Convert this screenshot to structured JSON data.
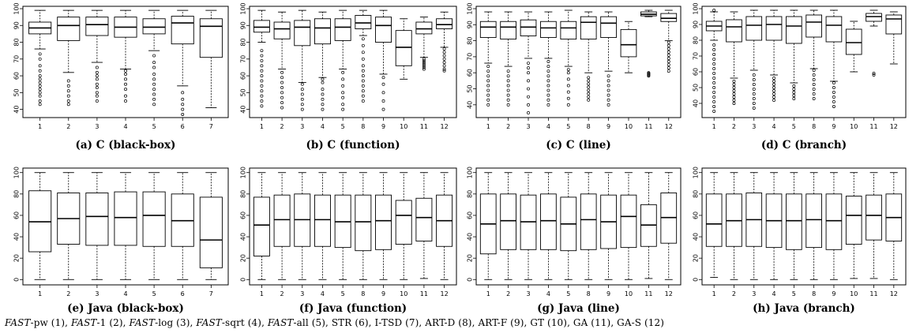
{
  "legend": [
    {
      "italic": "FAST",
      "rest": "-pw (1)"
    },
    {
      "italic": "FAST",
      "rest": "-1 (2)"
    },
    {
      "italic": "FAST",
      "rest": "-log (3)"
    },
    {
      "italic": "FAST",
      "rest": "-sqrt (4)"
    },
    {
      "italic": "FAST",
      "rest": "-all (5)"
    },
    {
      "italic": "",
      "rest": "STR (6)"
    },
    {
      "italic": "",
      "rest": "I-TSD (7)"
    },
    {
      "italic": "",
      "rest": "ART-D (8)"
    },
    {
      "italic": "",
      "rest": "ART-F (9)"
    },
    {
      "italic": "",
      "rest": "GT (10)"
    },
    {
      "italic": "",
      "rest": "GA (11)"
    },
    {
      "italic": "",
      "rest": "GA-S (12)"
    }
  ],
  "chart_data": [
    {
      "type": "boxplot",
      "title": "(a) C (black-box)",
      "yticks": [
        40,
        50,
        60,
        70,
        80,
        90,
        100
      ],
      "ylim": [
        37,
        100
      ],
      "categories": [
        "1",
        "2",
        "3",
        "4",
        "5",
        "6",
        "7"
      ],
      "boxes": [
        {
          "min": 76,
          "q1": 85,
          "median": 88.5,
          "q3": 92,
          "max": 99,
          "outliers": [
            43,
            45,
            48,
            50,
            52,
            54,
            56,
            58,
            60,
            63,
            66,
            70,
            73
          ]
        },
        {
          "min": 62,
          "q1": 81,
          "median": 90,
          "q3": 95,
          "max": 99,
          "outliers": [
            43,
            45,
            48,
            51,
            54,
            57
          ]
        },
        {
          "min": 68,
          "q1": 84,
          "median": 90.5,
          "q3": 95,
          "max": 99,
          "outliers": [
            45,
            48,
            50,
            53,
            55,
            58,
            60,
            62,
            65
          ]
        },
        {
          "min": 64,
          "q1": 83,
          "median": 89,
          "q3": 95,
          "max": 99,
          "outliers": [
            45,
            48,
            52,
            55,
            58,
            61,
            63
          ]
        },
        {
          "min": 75,
          "q1": 85,
          "median": 89,
          "q3": 94,
          "max": 99,
          "outliers": [
            43,
            46,
            49,
            52,
            55,
            58,
            61,
            65,
            68,
            72
          ]
        },
        {
          "min": 54,
          "q1": 79,
          "median": 91.5,
          "q3": 95.5,
          "max": 99,
          "outliers": [
            37,
            40,
            43,
            46,
            50
          ]
        },
        {
          "min": 41,
          "q1": 71,
          "median": 89.5,
          "q3": 94,
          "max": 99,
          "outliers": []
        }
      ]
    },
    {
      "type": "boxplot",
      "title": "(b) C (function)",
      "yticks": [
        40,
        50,
        60,
        70,
        80,
        90,
        100
      ],
      "ylim": [
        37,
        100
      ],
      "categories": [
        "1",
        "2",
        "3",
        "4",
        "5",
        "8",
        "9",
        "10",
        "11",
        "12"
      ],
      "boxes": [
        {
          "min": 80,
          "q1": 86,
          "median": 89,
          "q3": 93,
          "max": 99,
          "outliers": [
            42,
            45,
            48,
            51,
            54,
            57,
            60,
            63,
            66,
            69,
            72,
            75
          ]
        },
        {
          "min": 64,
          "q1": 82,
          "median": 88,
          "q3": 92,
          "max": 98,
          "outliers": [
            41,
            44,
            47,
            50,
            53,
            56,
            59,
            62
          ]
        },
        {
          "min": 56,
          "q1": 78,
          "median": 89,
          "q3": 93,
          "max": 99,
          "outliers": [
            40,
            43,
            46,
            49,
            52,
            55
          ]
        },
        {
          "min": 59,
          "q1": 79,
          "median": 88.5,
          "q3": 94,
          "max": 98,
          "outliers": [
            40,
            43,
            46,
            49,
            52,
            56,
            58
          ]
        },
        {
          "min": 64,
          "q1": 81,
          "median": 89,
          "q3": 94,
          "max": 99,
          "outliers": [
            40,
            43,
            47,
            50,
            54,
            58,
            62
          ]
        },
        {
          "min": 84,
          "q1": 88,
          "median": 91.5,
          "q3": 96,
          "max": 99,
          "outliers": [
            45,
            48,
            51,
            54,
            57,
            60,
            63,
            66,
            70,
            74,
            78,
            82
          ]
        },
        {
          "min": 61,
          "q1": 80,
          "median": 90,
          "q3": 95,
          "max": 99,
          "outliers": [
            40,
            45,
            50,
            55,
            59
          ]
        },
        {
          "min": 58,
          "q1": 66,
          "median": 77,
          "q3": 87,
          "max": 94,
          "outliers": []
        },
        {
          "min": 71,
          "q1": 85,
          "median": 88,
          "q3": 92,
          "max": 95,
          "outliers": [
            64,
            65,
            66,
            67,
            68,
            69,
            70
          ]
        },
        {
          "min": 77,
          "q1": 88,
          "median": 90.5,
          "q3": 94,
          "max": 98,
          "outliers": [
            63,
            64,
            66,
            68,
            70,
            72,
            74,
            76
          ]
        }
      ]
    },
    {
      "type": "boxplot",
      "title": "(c) C (line)",
      "yticks": [
        40,
        50,
        60,
        70,
        80,
        90,
        100
      ],
      "ylim": [
        34,
        100
      ],
      "categories": [
        "1",
        "2",
        "3",
        "4",
        "5",
        "8",
        "9",
        "10",
        "11",
        "12"
      ],
      "boxes": [
        {
          "min": 66,
          "q1": 82,
          "median": 88.5,
          "q3": 92,
          "max": 98,
          "outliers": [
            40,
            43,
            46,
            49,
            52,
            55,
            58,
            61,
            64
          ]
        },
        {
          "min": 64,
          "q1": 81,
          "median": 88.5,
          "q3": 92,
          "max": 98,
          "outliers": [
            40,
            43,
            46,
            49,
            52,
            55,
            58,
            61
          ]
        },
        {
          "min": 69,
          "q1": 83,
          "median": 88.5,
          "q3": 93,
          "max": 98,
          "outliers": [
            35,
            40,
            45,
            50,
            55,
            60,
            63,
            66
          ]
        },
        {
          "min": 69,
          "q1": 82,
          "median": 88,
          "q3": 92,
          "max": 98,
          "outliers": [
            40,
            43,
            46,
            49,
            52,
            55,
            58,
            61,
            64,
            67
          ]
        },
        {
          "min": 64,
          "q1": 81,
          "median": 88,
          "q3": 92,
          "max": 99,
          "outliers": [
            40,
            44,
            48,
            52,
            56,
            60,
            62
          ]
        },
        {
          "min": 60,
          "q1": 81,
          "median": 91.5,
          "q3": 95,
          "max": 98,
          "outliers": [
            43,
            45,
            47,
            49,
            51,
            53,
            55,
            57
          ]
        },
        {
          "min": 61,
          "q1": 82,
          "median": 91,
          "q3": 95,
          "max": 98,
          "outliers": [
            40,
            43,
            46,
            49,
            52,
            55,
            58
          ]
        },
        {
          "min": 60,
          "q1": 70,
          "median": 77.5,
          "q3": 87,
          "max": 92,
          "outliers": []
        },
        {
          "min": 95,
          "q1": 95.5,
          "median": 96.5,
          "q3": 98,
          "max": 99,
          "outliers": [
            58,
            58.5,
            59,
            59.5,
            60
          ]
        },
        {
          "min": 80,
          "q1": 92,
          "median": 94,
          "q3": 97,
          "max": 99,
          "outliers": [
            61,
            63,
            65,
            67,
            69,
            71,
            73,
            75,
            77,
            79
          ]
        }
      ]
    },
    {
      "type": "boxplot",
      "title": "(d) C (branch)",
      "yticks": [
        40,
        50,
        60,
        70,
        80,
        90,
        100
      ],
      "ylim": [
        33,
        100
      ],
      "categories": [
        "1",
        "2",
        "3",
        "4",
        "5",
        "8",
        "9",
        "10",
        "11",
        "12"
      ],
      "boxes": [
        {
          "min": 80,
          "q1": 86,
          "median": 89,
          "q3": 92,
          "max": 98,
          "outliers": [
            35,
            38,
            41,
            44,
            47,
            50,
            53,
            56,
            59,
            62,
            65,
            68,
            71,
            74,
            77,
            99
          ]
        },
        {
          "min": 56,
          "q1": 79,
          "median": 88.5,
          "q3": 93,
          "max": 98,
          "outliers": [
            40,
            42,
            44,
            46,
            48,
            50,
            52,
            54
          ]
        },
        {
          "min": 61,
          "q1": 80,
          "median": 89.5,
          "q3": 95,
          "max": 99,
          "outliers": [
            37,
            40,
            43,
            46,
            49,
            52,
            55,
            58
          ]
        },
        {
          "min": 58,
          "q1": 80,
          "median": 90,
          "q3": 95,
          "max": 99,
          "outliers": [
            42,
            44,
            46,
            48,
            50,
            52,
            54,
            56
          ]
        },
        {
          "min": 53,
          "q1": 78,
          "median": 89,
          "q3": 95,
          "max": 99,
          "outliers": [
            43,
            45,
            47,
            49,
            51
          ]
        },
        {
          "min": 62,
          "q1": 82,
          "median": 91.5,
          "q3": 96,
          "max": 99,
          "outliers": [
            43,
            46,
            49,
            52,
            55,
            58,
            61
          ]
        },
        {
          "min": 54,
          "q1": 79,
          "median": 89.5,
          "q3": 95,
          "max": 99,
          "outliers": [
            38,
            41,
            44,
            47,
            50,
            53
          ]
        },
        {
          "min": 60,
          "q1": 71,
          "median": 78.5,
          "q3": 87,
          "max": 92,
          "outliers": []
        },
        {
          "min": 89,
          "q1": 92,
          "median": 95,
          "q3": 97,
          "max": 99,
          "outliers": [
            58,
            59
          ]
        },
        {
          "min": 65,
          "q1": 84,
          "median": 93.5,
          "q3": 96,
          "max": 98,
          "outliers": []
        }
      ]
    },
    {
      "type": "boxplot",
      "title": "(e) Java (black-box)",
      "yticks": [
        0,
        20,
        40,
        60,
        80,
        100
      ],
      "ylim": [
        -2,
        102
      ],
      "categories": [
        "1",
        "2",
        "3",
        "4",
        "5",
        "6",
        "7"
      ],
      "boxes": [
        {
          "min": 0,
          "q1": 26,
          "median": 54,
          "q3": 83,
          "max": 100,
          "outliers": []
        },
        {
          "min": 0,
          "q1": 33,
          "median": 57,
          "q3": 81,
          "max": 100,
          "outliers": []
        },
        {
          "min": 0,
          "q1": 32,
          "median": 59,
          "q3": 81,
          "max": 100,
          "outliers": []
        },
        {
          "min": 0,
          "q1": 32,
          "median": 58,
          "q3": 82,
          "max": 100,
          "outliers": []
        },
        {
          "min": 0,
          "q1": 31,
          "median": 60,
          "q3": 82,
          "max": 100,
          "outliers": []
        },
        {
          "min": 0,
          "q1": 31,
          "median": 55,
          "q3": 80,
          "max": 100,
          "outliers": []
        },
        {
          "min": 0,
          "q1": 11,
          "median": 37,
          "q3": 77,
          "max": 100,
          "outliers": []
        }
      ]
    },
    {
      "type": "boxplot",
      "title": "(f) Java (function)",
      "yticks": [
        0,
        20,
        40,
        60,
        80,
        100
      ],
      "ylim": [
        -2,
        102
      ],
      "categories": [
        "1",
        "2",
        "3",
        "4",
        "5",
        "8",
        "9",
        "10",
        "11",
        "12"
      ],
      "boxes": [
        {
          "min": 0,
          "q1": 22,
          "median": 51,
          "q3": 77,
          "max": 100,
          "outliers": []
        },
        {
          "min": 0,
          "q1": 31,
          "median": 56,
          "q3": 79,
          "max": 100,
          "outliers": []
        },
        {
          "min": 0,
          "q1": 31,
          "median": 56,
          "q3": 80,
          "max": 100,
          "outliers": []
        },
        {
          "min": 0,
          "q1": 31,
          "median": 56,
          "q3": 79,
          "max": 100,
          "outliers": []
        },
        {
          "min": 0,
          "q1": 30,
          "median": 54,
          "q3": 79,
          "max": 100,
          "outliers": []
        },
        {
          "min": 0,
          "q1": 27,
          "median": 54,
          "q3": 79,
          "max": 100,
          "outliers": []
        },
        {
          "min": 0,
          "q1": 28,
          "median": 55,
          "q3": 79,
          "max": 100,
          "outliers": []
        },
        {
          "min": 0,
          "q1": 33,
          "median": 60,
          "q3": 74,
          "max": 100,
          "outliers": []
        },
        {
          "min": 1,
          "q1": 36,
          "median": 58,
          "q3": 76,
          "max": 100,
          "outliers": []
        },
        {
          "min": 0,
          "q1": 31,
          "median": 55,
          "q3": 79,
          "max": 100,
          "outliers": []
        }
      ]
    },
    {
      "type": "boxplot",
      "title": "(g) Java (line)",
      "yticks": [
        0,
        20,
        40,
        60,
        80,
        100
      ],
      "ylim": [
        -2,
        102
      ],
      "categories": [
        "1",
        "2",
        "3",
        "4",
        "5",
        "8",
        "9",
        "10",
        "11",
        "12"
      ],
      "boxes": [
        {
          "min": 0,
          "q1": 24,
          "median": 52,
          "q3": 80,
          "max": 100,
          "outliers": []
        },
        {
          "min": 0,
          "q1": 28,
          "median": 55,
          "q3": 80,
          "max": 100,
          "outliers": []
        },
        {
          "min": 0,
          "q1": 28,
          "median": 54,
          "q3": 79,
          "max": 100,
          "outliers": []
        },
        {
          "min": 0,
          "q1": 28,
          "median": 55,
          "q3": 80,
          "max": 100,
          "outliers": []
        },
        {
          "min": 0,
          "q1": 27,
          "median": 52,
          "q3": 77,
          "max": 100,
          "outliers": []
        },
        {
          "min": 0,
          "q1": 28,
          "median": 56,
          "q3": 80,
          "max": 100,
          "outliers": []
        },
        {
          "min": 0,
          "q1": 29,
          "median": 54,
          "q3": 79,
          "max": 100,
          "outliers": []
        },
        {
          "min": 0,
          "q1": 30,
          "median": 59,
          "q3": 79,
          "max": 100,
          "outliers": []
        },
        {
          "min": 1,
          "q1": 31,
          "median": 51,
          "q3": 70,
          "max": 100,
          "outliers": []
        },
        {
          "min": 0,
          "q1": 34,
          "median": 58,
          "q3": 81,
          "max": 100,
          "outliers": []
        }
      ]
    },
    {
      "type": "boxplot",
      "title": "(h) Java (branch)",
      "yticks": [
        0,
        20,
        40,
        60,
        80,
        100
      ],
      "ylim": [
        -2,
        102
      ],
      "categories": [
        "1",
        "2",
        "3",
        "4",
        "5",
        "8",
        "9",
        "10",
        "11",
        "12"
      ],
      "boxes": [
        {
          "min": 2,
          "q1": 31,
          "median": 52,
          "q3": 80,
          "max": 100,
          "outliers": []
        },
        {
          "min": 0,
          "q1": 31,
          "median": 55,
          "q3": 80,
          "max": 100,
          "outliers": []
        },
        {
          "min": 0,
          "q1": 31,
          "median": 56,
          "q3": 81,
          "max": 100,
          "outliers": []
        },
        {
          "min": 0,
          "q1": 30,
          "median": 55,
          "q3": 80,
          "max": 100,
          "outliers": []
        },
        {
          "min": 0,
          "q1": 28,
          "median": 55,
          "q3": 80,
          "max": 100,
          "outliers": []
        },
        {
          "min": 0,
          "q1": 30,
          "median": 56,
          "q3": 80,
          "max": 100,
          "outliers": []
        },
        {
          "min": 0,
          "q1": 28,
          "median": 55,
          "q3": 80,
          "max": 100,
          "outliers": []
        },
        {
          "min": 1,
          "q1": 33,
          "median": 60,
          "q3": 78,
          "max": 100,
          "outliers": []
        },
        {
          "min": 1,
          "q1": 37,
          "median": 60,
          "q3": 79,
          "max": 100,
          "outliers": []
        },
        {
          "min": 0,
          "q1": 36,
          "median": 58,
          "q3": 80,
          "max": 100,
          "outliers": []
        }
      ]
    }
  ]
}
